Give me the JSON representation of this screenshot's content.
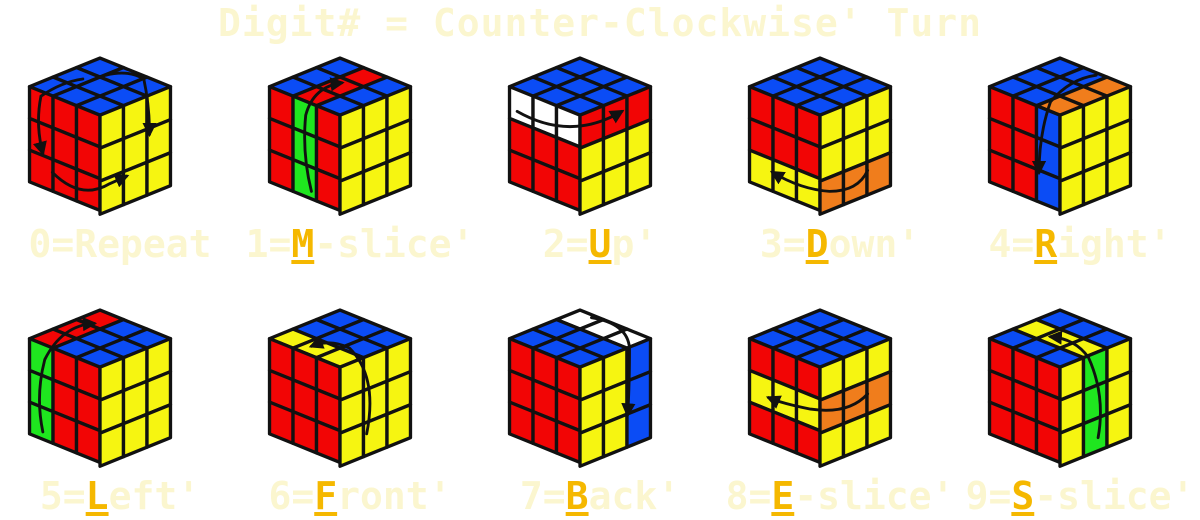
{
  "title": "Digit# = Counter-Clockwise' Turn",
  "colors": {
    "title_text": "#fbf6cf",
    "key_letter": "#f5b800",
    "U": "#0b4cf5",
    "F": "#f20505",
    "R": "#f6f511",
    "white": "#ffffff",
    "green": "#1fe61f",
    "orange": "#f07d1c",
    "outline": "#111111"
  },
  "cells": [
    {
      "digit": "0",
      "pre": "0=Repeat",
      "key": "",
      "post": "",
      "faces": {
        "U": [
          "B",
          "B",
          "B",
          "B",
          "B",
          "B",
          "B",
          "B",
          "B"
        ],
        "F": [
          "R",
          "R",
          "R",
          "R",
          "R",
          "R",
          "R",
          "R",
          "R"
        ],
        "R": [
          "Y",
          "Y",
          "Y",
          "Y",
          "Y",
          "Y",
          "Y",
          "Y",
          "Y"
        ]
      },
      "arrows": [
        "repeat"
      ]
    },
    {
      "digit": "1",
      "pre": "1=",
      "key": "M",
      "post": "-slice'",
      "faces": {
        "U": [
          "B",
          "R",
          "B",
          "B",
          "R",
          "B",
          "B",
          "R",
          "B"
        ],
        "F": [
          "R",
          "G",
          "R",
          "R",
          "G",
          "R",
          "R",
          "G",
          "R"
        ],
        "R": [
          "Y",
          "Y",
          "Y",
          "Y",
          "Y",
          "Y",
          "Y",
          "Y",
          "Y"
        ]
      },
      "arrows": [
        "f-col1-up"
      ]
    },
    {
      "digit": "2",
      "pre": "2=",
      "key": "U",
      "post": "p'",
      "faces": {
        "U": [
          "B",
          "B",
          "B",
          "B",
          "B",
          "B",
          "B",
          "B",
          "B"
        ],
        "F": [
          "W",
          "W",
          "W",
          "R",
          "R",
          "R",
          "R",
          "R",
          "R"
        ],
        "R": [
          "R",
          "R",
          "R",
          "Y",
          "Y",
          "Y",
          "Y",
          "Y",
          "Y"
        ]
      },
      "arrows": [
        "top-row"
      ]
    },
    {
      "digit": "3",
      "pre": "3=",
      "key": "D",
      "post": "own'",
      "faces": {
        "U": [
          "B",
          "B",
          "B",
          "B",
          "B",
          "B",
          "B",
          "B",
          "B"
        ],
        "F": [
          "R",
          "R",
          "R",
          "R",
          "R",
          "R",
          "Y",
          "Y",
          "Y"
        ],
        "R": [
          "Y",
          "Y",
          "Y",
          "Y",
          "Y",
          "Y",
          "O",
          "O",
          "O"
        ]
      },
      "arrows": [
        "bottom-row"
      ]
    },
    {
      "digit": "4",
      "pre": "4=",
      "key": "R",
      "post": "ight'",
      "faces": {
        "U": [
          "B",
          "B",
          "O",
          "B",
          "B",
          "O",
          "B",
          "B",
          "O"
        ],
        "F": [
          "R",
          "R",
          "B",
          "R",
          "R",
          "B",
          "R",
          "R",
          "B"
        ],
        "R": [
          "Y",
          "Y",
          "Y",
          "Y",
          "Y",
          "Y",
          "Y",
          "Y",
          "Y"
        ]
      },
      "arrows": [
        "f-col2-down"
      ]
    },
    {
      "digit": "5",
      "pre": "5=",
      "key": "L",
      "post": "eft'",
      "faces": {
        "U": [
          "R",
          "B",
          "B",
          "R",
          "B",
          "B",
          "R",
          "B",
          "B"
        ],
        "F": [
          "G",
          "R",
          "R",
          "G",
          "R",
          "R",
          "G",
          "R",
          "R"
        ],
        "R": [
          "Y",
          "Y",
          "Y",
          "Y",
          "Y",
          "Y",
          "Y",
          "Y",
          "Y"
        ]
      },
      "arrows": [
        "f-col0-up"
      ]
    },
    {
      "digit": "6",
      "pre": "6=",
      "key": "F",
      "post": "ront'",
      "faces": {
        "U": [
          "B",
          "B",
          "B",
          "B",
          "B",
          "B",
          "Y",
          "Y",
          "Y"
        ],
        "F": [
          "R",
          "R",
          "R",
          "R",
          "R",
          "R",
          "R",
          "R",
          "R"
        ],
        "R": [
          "Y",
          "Y",
          "Y",
          "Y",
          "Y",
          "Y",
          "Y",
          "Y",
          "Y"
        ]
      },
      "arrows": [
        "front-ccw"
      ]
    },
    {
      "digit": "7",
      "pre": "7=",
      "key": "B",
      "post": "ack'",
      "faces": {
        "U": [
          "W",
          "W",
          "W",
          "B",
          "B",
          "B",
          "B",
          "B",
          "B"
        ],
        "F": [
          "R",
          "R",
          "R",
          "R",
          "R",
          "R",
          "R",
          "R",
          "R"
        ],
        "R": [
          "Y",
          "Y",
          "B",
          "Y",
          "Y",
          "B",
          "Y",
          "Y",
          "B"
        ]
      },
      "arrows": [
        "back-cw"
      ]
    },
    {
      "digit": "8",
      "pre": "8=",
      "key": "E",
      "post": "-slice'",
      "faces": {
        "U": [
          "B",
          "B",
          "B",
          "B",
          "B",
          "B",
          "B",
          "B",
          "B"
        ],
        "F": [
          "R",
          "R",
          "R",
          "Y",
          "Y",
          "Y",
          "R",
          "R",
          "R"
        ],
        "R": [
          "Y",
          "Y",
          "Y",
          "O",
          "O",
          "O",
          "Y",
          "Y",
          "Y"
        ]
      },
      "arrows": [
        "mid-row"
      ]
    },
    {
      "digit": "9",
      "pre": "9=",
      "key": "S",
      "post": "-slice'",
      "faces": {
        "U": [
          "B",
          "B",
          "B",
          "Y",
          "Y",
          "Y",
          "B",
          "B",
          "B"
        ],
        "F": [
          "R",
          "R",
          "R",
          "R",
          "R",
          "R",
          "R",
          "R",
          "R"
        ],
        "R": [
          "Y",
          "G",
          "Y",
          "Y",
          "G",
          "Y",
          "Y",
          "G",
          "Y"
        ]
      },
      "arrows": [
        "s-slice"
      ]
    }
  ]
}
